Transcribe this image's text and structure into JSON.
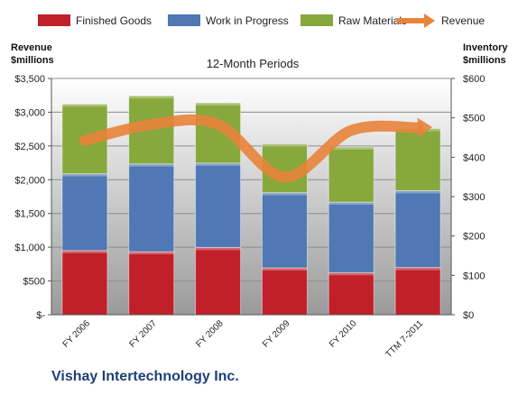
{
  "chart_data": {
    "type": "bar",
    "subtitle": "12-Month Periods",
    "company": "Vishay Intertechnology Inc.",
    "left_axis": {
      "label_line1": "Revenue",
      "label_line2": "$millions",
      "ylim": [
        0,
        3500
      ],
      "ticks": [
        {
          "value": 0,
          "label": "$-"
        },
        {
          "value": 500,
          "label": "$500"
        },
        {
          "value": 1000,
          "label": "$1,000"
        },
        {
          "value": 1500,
          "label": "$1,500"
        },
        {
          "value": 2000,
          "label": "$2,000"
        },
        {
          "value": 2500,
          "label": "$2,500"
        },
        {
          "value": 3000,
          "label": "$3,000"
        },
        {
          "value": 3500,
          "label": "$3,500"
        }
      ]
    },
    "right_axis": {
      "label_line1": "Inventory",
      "label_line2": "$millions",
      "ylim": [
        0,
        600
      ],
      "ticks": [
        {
          "value": 0,
          "label": "$0"
        },
        {
          "value": 100,
          "label": "$100"
        },
        {
          "value": 200,
          "label": "$200"
        },
        {
          "value": 300,
          "label": "$300"
        },
        {
          "value": 400,
          "label": "$400"
        },
        {
          "value": 500,
          "label": "$500"
        },
        {
          "value": 600,
          "label": "$600"
        }
      ]
    },
    "categories": [
      "FY 2006",
      "FY 2007",
      "FY 2008",
      "FY 2009",
      "FY 2010",
      "TTM 7-2011"
    ],
    "series": [
      {
        "name": "Finished Goods",
        "axis": "right",
        "color": "#c0202a",
        "values": [
          163,
          160,
          171,
          119,
          107,
          120
        ]
      },
      {
        "name": "Work in Progress",
        "axis": "right",
        "color": "#4f78b4",
        "values": [
          195,
          223,
          214,
          191,
          179,
          195
        ]
      },
      {
        "name": "Raw Materials",
        "axis": "right",
        "color": "#86a83c",
        "values": [
          177,
          173,
          153,
          124,
          140,
          158
        ]
      }
    ],
    "line": {
      "name": "Revenue",
      "axis": "left",
      "color": "#e8833a",
      "values": [
        2580,
        2820,
        2820,
        2040,
        2730,
        2770
      ]
    },
    "legend_position": "top",
    "grid": true
  }
}
